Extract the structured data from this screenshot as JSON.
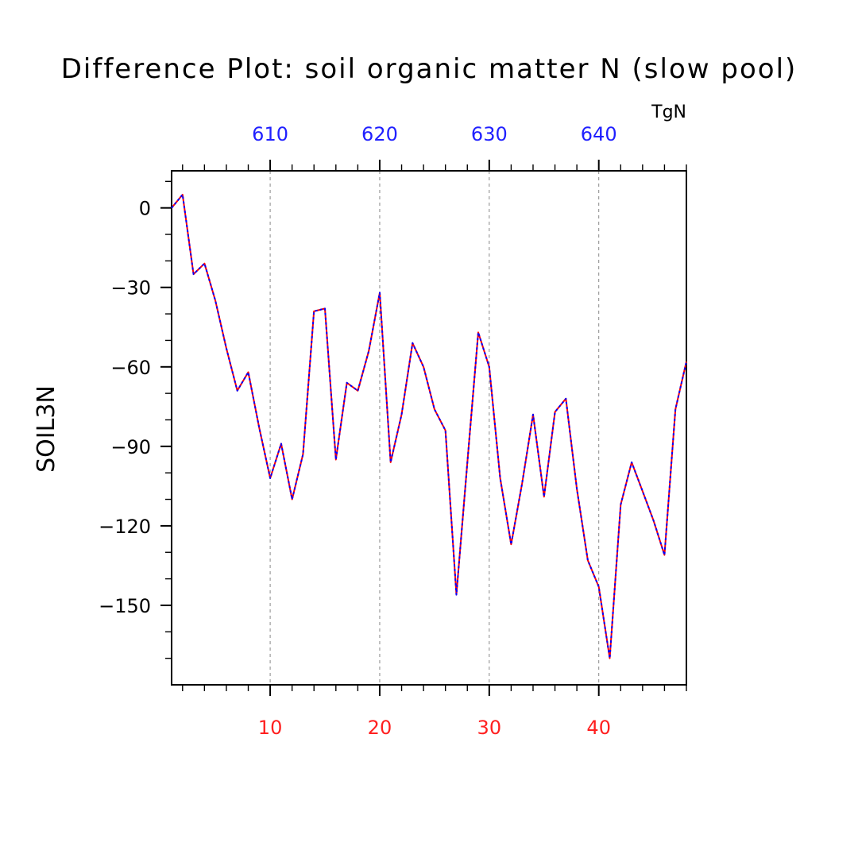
{
  "chart_data": {
    "type": "line",
    "title": "Difference Plot: soil organic matter N (slow pool)",
    "units": "TgN",
    "ylabel": "SOIL3N",
    "xlabel": "",
    "xlim": [
      1,
      48
    ],
    "ylim": [
      -180,
      14
    ],
    "grid": "vertical-dashed-at-major-x",
    "colors": {
      "bottom_axis": "#ff2020",
      "top_axis": "#2020ff",
      "line_a": "#ff0000",
      "line_b": "#0000ff",
      "frame": "#000000"
    },
    "x_ticks_bottom": [
      "10",
      "20",
      "30",
      "40"
    ],
    "x_ticks_bottom_values": [
      10,
      20,
      30,
      40
    ],
    "x_ticks_top": [
      "610",
      "620",
      "630",
      "640"
    ],
    "x_ticks_top_values": [
      10,
      20,
      30,
      40
    ],
    "y_ticks": [
      "0",
      "−30",
      "−60",
      "−90",
      "−120",
      "−150"
    ],
    "y_ticks_values": [
      0,
      -30,
      -60,
      -90,
      -120,
      -150
    ],
    "series": [
      {
        "color": "#ff0000",
        "x": [
          1,
          2,
          3,
          4,
          5,
          6,
          7,
          8,
          9,
          10,
          11,
          12,
          13,
          14,
          15,
          16,
          17,
          18,
          19,
          20,
          21,
          22,
          23,
          24,
          25,
          26,
          27,
          28,
          29,
          30,
          31,
          32,
          33,
          34,
          35,
          36,
          37,
          38,
          39,
          40,
          41,
          42,
          43,
          44,
          45,
          46,
          47,
          48
        ],
        "values": [
          0,
          5,
          -25,
          -21,
          -35,
          -53,
          -69,
          -62,
          -83,
          -102,
          -89,
          -110,
          -93,
          -39,
          -38,
          -95,
          -66,
          -69,
          -54,
          -32,
          -96,
          -78,
          -51,
          -60,
          -76,
          -84,
          -146,
          -96,
          -47,
          -60,
          -102,
          -127,
          -104,
          -78,
          -109,
          -77,
          -72,
          -106,
          -133,
          -143,
          -170,
          -112,
          -96,
          -107,
          -118,
          -131,
          -76,
          -58
        ]
      },
      {
        "color": "#0000ff",
        "x": [
          1,
          2,
          3,
          4,
          5,
          6,
          7,
          8,
          9,
          10,
          11,
          12,
          13,
          14,
          15,
          16,
          17,
          18,
          19,
          20,
          21,
          22,
          23,
          24,
          25,
          26,
          27,
          28,
          29,
          30,
          31,
          32,
          33,
          34,
          35,
          36,
          37,
          38,
          39,
          40,
          41,
          42,
          43,
          44,
          45,
          46,
          47,
          48
        ],
        "values": [
          0,
          5,
          -25,
          -21,
          -35,
          -53,
          -69,
          -62,
          -83,
          -102,
          -89,
          -110,
          -93,
          -39,
          -38,
          -95,
          -66,
          -69,
          -54,
          -32,
          -96,
          -78,
          -51,
          -60,
          -76,
          -84,
          -146,
          -96,
          -47,
          -60,
          -102,
          -127,
          -104,
          -78,
          -109,
          -77,
          -72,
          -106,
          -133,
          -143,
          -170,
          -112,
          -96,
          -107,
          -118,
          -131,
          -76,
          -58
        ]
      }
    ]
  }
}
